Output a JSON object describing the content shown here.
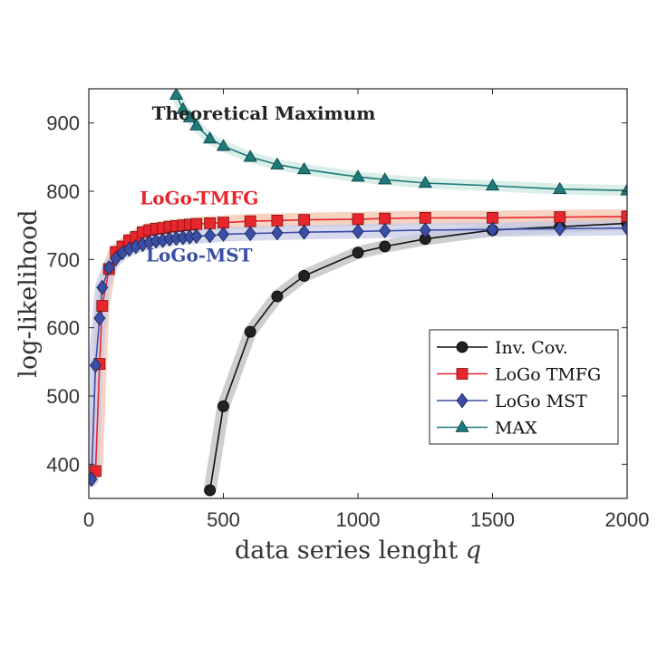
{
  "chart_data": {
    "type": "line",
    "title": "",
    "xlabel": "data series lenght",
    "xlabel_var": "q",
    "ylabel": "log-likelihood",
    "xlim": [
      0,
      2000
    ],
    "ylim": [
      350,
      950
    ],
    "xticks": [
      0,
      500,
      1000,
      1500,
      2000
    ],
    "yticks": [
      400,
      500,
      600,
      700,
      800,
      900
    ],
    "grid": false,
    "legend_position": "lower-right",
    "annotations": [
      {
        "text": "Theoretical Maximum",
        "x": 650,
        "y": 905,
        "color": "#222222"
      },
      {
        "text": "LoGo-TMFG",
        "x": 410,
        "y": 781,
        "color": "#e8262b"
      },
      {
        "text": "LoGo-MST",
        "x": 410,
        "y": 697,
        "color": "#3b4ea6"
      }
    ],
    "series": [
      {
        "name": "Inv. Cov.",
        "color": "#222222",
        "marker": "circle",
        "band": "#bdbdbd",
        "band_width": 7,
        "x": [
          450,
          500,
          600,
          700,
          800,
          1000,
          1100,
          1250,
          1500,
          1750,
          2000
        ],
        "y": [
          362,
          485,
          594,
          646,
          676,
          710,
          719,
          730,
          743,
          748,
          753
        ]
      },
      {
        "name": "LoGo TMFG",
        "color": "#e8262b",
        "marker": "square",
        "band": "#f4c4ae",
        "band_width": 8,
        "x": [
          25,
          40,
          50,
          75,
          100,
          125,
          150,
          175,
          200,
          225,
          250,
          275,
          300,
          325,
          350,
          375,
          400,
          450,
          500,
          600,
          700,
          800,
          1000,
          1100,
          1250,
          1500,
          1750,
          2000
        ],
        "y": [
          390,
          547,
          632,
          686,
          711,
          719,
          728,
          733,
          740,
          743,
          745,
          746,
          748,
          749,
          750,
          751,
          752,
          753,
          754,
          756,
          757,
          758,
          759,
          760,
          761,
          761,
          762,
          763
        ]
      },
      {
        "name": "LoGo MST",
        "color": "#3b4ea6",
        "marker": "diamond",
        "band": "#c8cbe8",
        "band_width": 8,
        "x": [
          10,
          25,
          40,
          50,
          75,
          100,
          125,
          150,
          175,
          200,
          225,
          250,
          275,
          300,
          325,
          350,
          375,
          400,
          450,
          500,
          600,
          700,
          800,
          1000,
          1100,
          1250,
          1500,
          1750,
          2000
        ],
        "y": [
          378,
          545,
          614,
          659,
          688,
          701,
          710,
          715,
          719,
          722,
          725,
          727,
          728,
          730,
          731,
          732,
          733,
          734,
          735,
          737,
          738,
          739,
          740,
          741,
          742,
          743,
          744,
          745,
          746
        ]
      },
      {
        "name": "MAX",
        "color": "#1f7a7a",
        "marker": "triangle",
        "band": "#cde8e3",
        "band_width": 6,
        "x": [
          325,
          350,
          375,
          400,
          450,
          500,
          600,
          700,
          800,
          1000,
          1100,
          1250,
          1500,
          1750,
          2000
        ],
        "y": [
          941,
          920,
          908,
          896,
          877,
          866,
          850,
          839,
          832,
          821,
          817,
          812,
          808,
          803,
          801
        ]
      }
    ]
  }
}
